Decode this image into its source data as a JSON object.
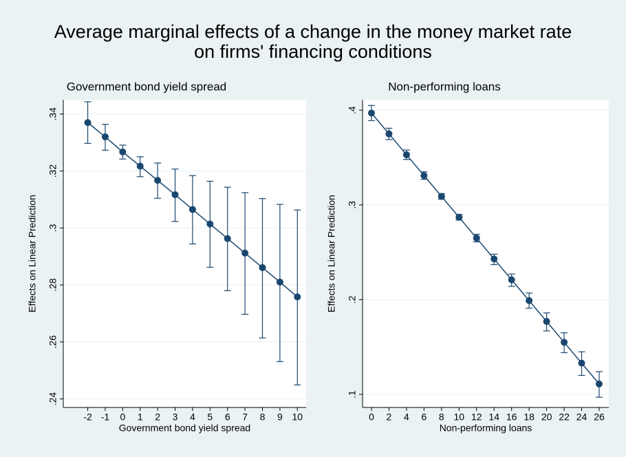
{
  "title": [
    "Average marginal effects of a change in the money market rate",
    "on firms' financing conditions"
  ],
  "chart_data": [
    {
      "type": "line",
      "subtitle": "Government bond yield spread",
      "xlabel": "Government bond yield spread",
      "ylabel": "Effects on Linear Prediction",
      "x": [
        -2,
        -1,
        0,
        1,
        2,
        3,
        4,
        5,
        6,
        7,
        8,
        9,
        10
      ],
      "values": [
        0.337,
        0.332,
        0.3267,
        0.3217,
        0.3167,
        0.3117,
        0.3065,
        0.3014,
        0.2963,
        0.2912,
        0.2861,
        0.281,
        0.2758
      ],
      "ci_low": [
        0.3297,
        0.3273,
        0.3242,
        0.318,
        0.3104,
        0.3023,
        0.2944,
        0.2862,
        0.278,
        0.2697,
        0.2614,
        0.2531,
        0.2449
      ],
      "ci_high": [
        0.3443,
        0.3364,
        0.3291,
        0.325,
        0.3228,
        0.3207,
        0.3184,
        0.3164,
        0.3143,
        0.3124,
        0.3103,
        0.3083,
        0.3063
      ],
      "color": "#1a476f",
      "xlim": [
        -3.4,
        10.5
      ],
      "xticks": [
        -2,
        -1,
        0,
        1,
        2,
        3,
        4,
        5,
        6,
        7,
        8,
        9,
        10
      ],
      "ylim": [
        0.237,
        0.345
      ],
      "yticks": [
        {
          "value": 0.24,
          "label": ".24"
        },
        {
          "value": 0.26,
          "label": ".26"
        },
        {
          "value": 0.28,
          "label": ".28"
        },
        {
          "value": 0.3,
          "label": ".3"
        },
        {
          "value": 0.32,
          "label": ".32"
        },
        {
          "value": 0.34,
          "label": ".34"
        }
      ],
      "grid": true
    },
    {
      "type": "line",
      "subtitle": "Non-performing loans",
      "xlabel": "Non-performing loans",
      "ylabel": "Effects on Linear Prediction",
      "x": [
        0,
        2,
        4,
        6,
        8,
        10,
        12,
        14,
        16,
        18,
        20,
        22,
        24,
        26
      ],
      "values": [
        0.397,
        0.375,
        0.353,
        0.331,
        0.309,
        0.287,
        0.265,
        0.243,
        0.221,
        0.199,
        0.177,
        0.155,
        0.133,
        0.111
      ],
      "ci_low": [
        0.389,
        0.369,
        0.348,
        0.327,
        0.306,
        0.284,
        0.261,
        0.237,
        0.214,
        0.191,
        0.167,
        0.144,
        0.12,
        0.097
      ],
      "ci_high": [
        0.405,
        0.381,
        0.358,
        0.335,
        0.312,
        0.29,
        0.269,
        0.248,
        0.227,
        0.207,
        0.186,
        0.165,
        0.145,
        0.124
      ],
      "color": "#1a476f",
      "xlim": [
        -1.02,
        27.1
      ],
      "xticks": [
        0,
        2,
        4,
        6,
        8,
        10,
        12,
        14,
        16,
        18,
        20,
        22,
        24,
        26
      ],
      "ylim": [
        0.0862,
        0.411
      ],
      "yticks": [
        {
          "value": 0.1,
          "label": ".1"
        },
        {
          "value": 0.2,
          "label": ".2"
        },
        {
          "value": 0.3,
          "label": ".3"
        },
        {
          "value": 0.4,
          "label": ".4"
        }
      ],
      "grid": true
    }
  ]
}
